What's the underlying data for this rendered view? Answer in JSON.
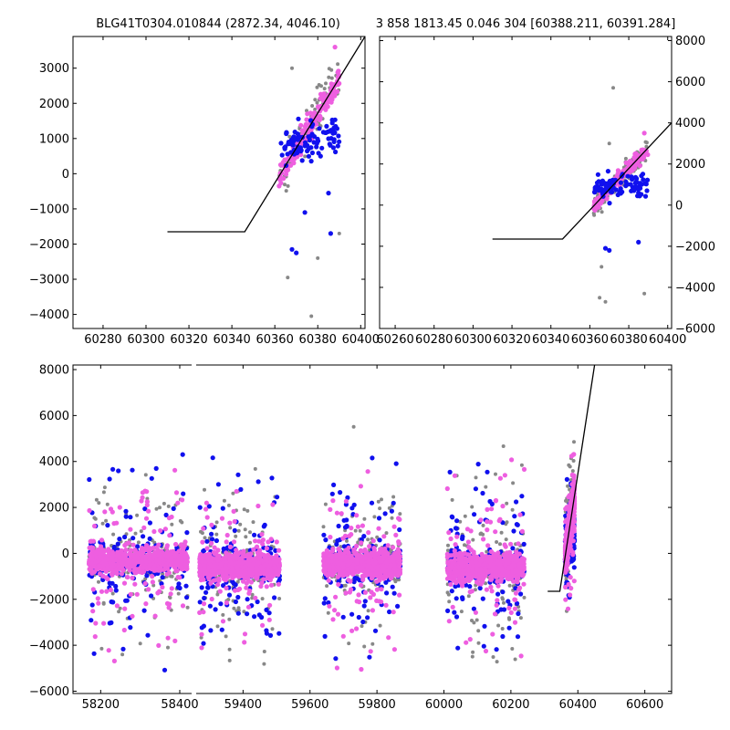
{
  "header": {
    "left_title": "BLG41T0304.010844 (2872.34, 4046.10)",
    "right_title": "3 858 1813.45 0.046 304 [60388.211, 60391.284]"
  },
  "colors": {
    "series_gray": "#888888",
    "series_blue": "#1010ee",
    "series_pink": "#ee5ee0",
    "model_line": "#000000",
    "background": "#ffffff"
  },
  "chart_data": [
    {
      "type": "scatter",
      "panel": "top-left",
      "xlim": [
        60266,
        60402
      ],
      "ylim": [
        -4400,
        3900
      ],
      "xticks": [
        "60280",
        "60300",
        "60320",
        "60340",
        "60360",
        "60380",
        "60400"
      ],
      "yticks": [
        "−4000",
        "−3000",
        "−2000",
        "−1000",
        "0",
        "1000",
        "2000",
        "3000"
      ],
      "ytick_side": "left",
      "model_line": {
        "x": [
          60310,
          60346,
          60402
        ],
        "y": [
          -1650,
          -1650,
          3900
        ]
      },
      "series": [
        {
          "color": "gray",
          "x_range": [
            60362,
            60390
          ],
          "trend": "follows model rise",
          "scatter_spread": 1500,
          "outliers": [
            [
              60366,
              -2950
            ],
            [
              60377,
              -4050
            ],
            [
              60380,
              -2400
            ],
            [
              60390,
              -1700
            ],
            [
              60368,
              3000
            ]
          ]
        },
        {
          "color": "pink",
          "x_range": [
            60362,
            60390
          ],
          "trend": "follows model rise",
          "scatter_spread": 700,
          "top": [
            60388,
            3600
          ]
        },
        {
          "color": "blue",
          "x_range": [
            60362,
            60390
          ],
          "level": 700,
          "scatter_spread": 1200,
          "outliers": [
            [
              60368,
              -2150
            ],
            [
              60370,
              -2250
            ],
            [
              60374,
              -1100
            ],
            [
              60386,
              -1700
            ],
            [
              60385,
              -550
            ]
          ]
        }
      ]
    },
    {
      "type": "scatter",
      "panel": "top-right",
      "xlim": [
        60252,
        60402
      ],
      "ylim": [
        -6000,
        8200
      ],
      "xticks": [
        "60260",
        "60280",
        "60300",
        "60320",
        "60340",
        "60360",
        "60380",
        "60400"
      ],
      "yticks": [
        "−6000",
        "−4000",
        "−2000",
        "0",
        "2000",
        "4000",
        "6000",
        "8000"
      ],
      "ytick_side": "right",
      "model_line": {
        "x": [
          60310,
          60346,
          60402
        ],
        "y": [
          -1650,
          -1650,
          4000
        ]
      },
      "series": [
        {
          "color": "gray",
          "x_range": [
            60362,
            60390
          ],
          "trend": "follows model rise",
          "scatter_spread": 1500,
          "outliers": [
            [
              60366,
              -3000
            ],
            [
              60365,
              -4500
            ],
            [
              60368,
              -4700
            ],
            [
              60372,
              5700
            ],
            [
              60388,
              -4300
            ],
            [
              60370,
              3000
            ]
          ]
        },
        {
          "color": "pink",
          "x_range": [
            60362,
            60390
          ],
          "trend": "follows model rise",
          "scatter_spread": 700,
          "top": [
            60388,
            3500
          ]
        },
        {
          "color": "blue",
          "x_range": [
            60362,
            60390
          ],
          "level": 700,
          "scatter_spread": 1200,
          "outliers": [
            [
              60368,
              -2100
            ],
            [
              60370,
              -2200
            ],
            [
              60385,
              -1800
            ]
          ]
        }
      ]
    },
    {
      "type": "scatter",
      "panel": "bottom",
      "xlim": [
        58130,
        60680
      ],
      "ylim": [
        -6100,
        8200
      ],
      "x_break": [
        58430,
        59260
      ],
      "xticks": [
        "58200",
        "58400",
        "59400",
        "59600",
        "59800",
        "60000",
        "60200",
        "60400",
        "60600"
      ],
      "yticks": [
        "−6000",
        "−4000",
        "−2000",
        "0",
        "2000",
        "4000",
        "6000",
        "8000"
      ],
      "ytick_side": "left",
      "model_line": {
        "x": [
          60310,
          60346,
          60450
        ],
        "y": [
          -1650,
          -1650,
          8200
        ]
      },
      "seasons": [
        {
          "x_range": [
            58170,
            58420
          ],
          "center": -300,
          "band": 700,
          "spread": 2500
        },
        {
          "x_range": [
            59270,
            59510
          ],
          "center": -550,
          "band": 700,
          "spread": 2500
        },
        {
          "x_range": [
            59640,
            59870
          ],
          "center": -450,
          "band": 700,
          "spread": 2600
        },
        {
          "x_range": [
            60010,
            60240
          ],
          "center": -600,
          "band": 700,
          "spread": 2600
        },
        {
          "x_range": [
            60362,
            60390
          ],
          "center": 500,
          "band": 900,
          "spread": 1500,
          "trend": "follows model rise"
        }
      ],
      "series": [
        {
          "color": "gray",
          "share": "background"
        },
        {
          "color": "blue",
          "share": "middle"
        },
        {
          "color": "pink",
          "share": "front"
        }
      ]
    }
  ]
}
